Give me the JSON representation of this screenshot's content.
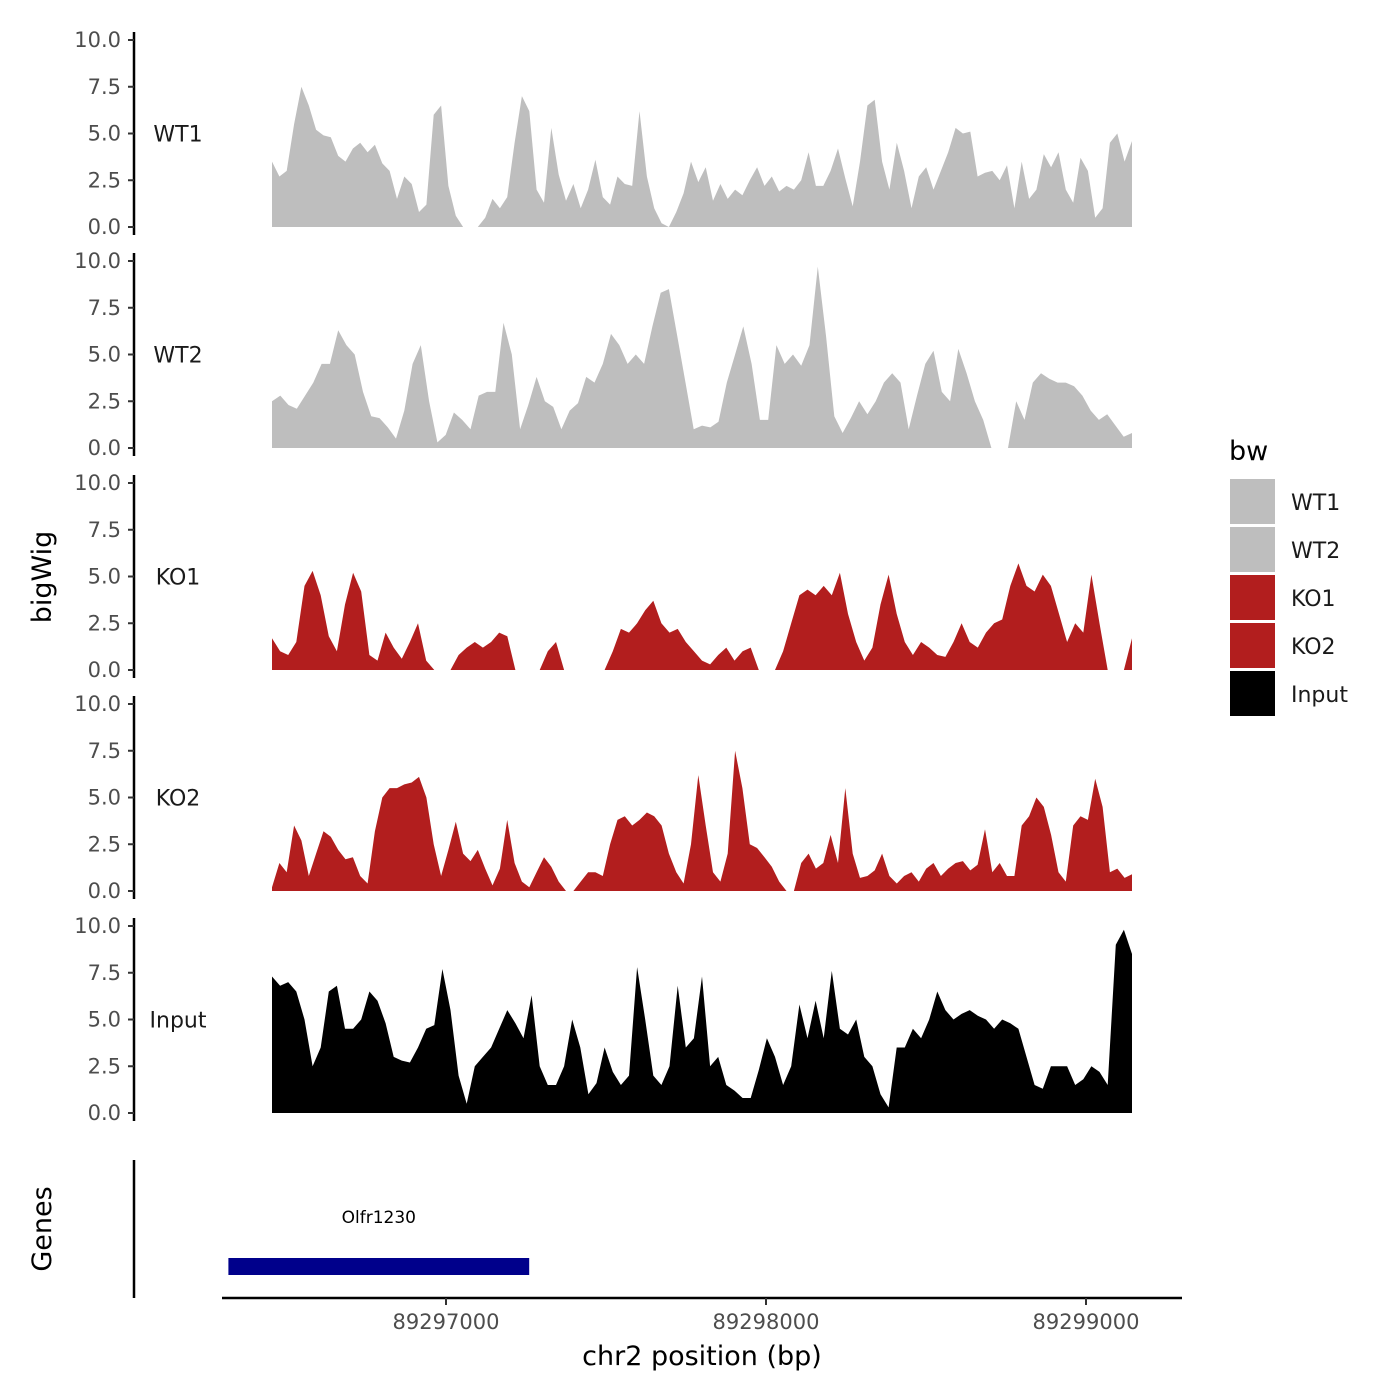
{
  "chart_data": {
    "type": "area",
    "y_axis_title": "bigWig",
    "x_axis_title": "chr2 position (bp)",
    "genes_axis_title": "Genes",
    "y_ticks": [
      "0.0",
      "2.5",
      "5.0",
      "7.5",
      "10.0"
    ],
    "ylim": [
      0,
      10
    ],
    "xlim": [
      89296300,
      89299300
    ],
    "x_tick_values": [
      89297000,
      89298000,
      89299000
    ],
    "x_tick_labels": [
      "89297000",
      "89298000",
      "89299000"
    ],
    "series": [
      {
        "name": "WT1",
        "color": "#bebebe",
        "values": [
          3.5,
          2.7,
          3.0,
          5.5,
          7.5,
          6.5,
          5.2,
          4.9,
          4.8,
          3.8,
          3.5,
          4.2,
          4.5,
          4.0,
          4.4,
          3.4,
          3.0,
          1.5,
          2.7,
          2.3,
          0.8,
          1.2,
          6.0,
          6.5,
          2.2,
          0.6,
          0,
          0,
          0,
          0.5,
          1.5,
          1.0,
          1.6,
          4.5,
          7.0,
          6.2,
          2.0,
          1.3,
          5.3,
          2.8,
          1.4,
          2.3,
          1.0,
          2.0,
          3.6,
          1.6,
          1.2,
          2.7,
          2.3,
          2.2,
          6.2,
          2.7,
          1.0,
          0.2,
          0,
          0.8,
          1.8,
          3.5,
          2.4,
          3.2,
          1.4,
          2.3,
          1.5,
          2.0,
          1.7,
          2.5,
          3.2,
          2.2,
          2.7,
          1.9,
          2.2,
          2.0,
          2.5,
          4.0,
          2.2,
          2.2,
          3.0,
          4.2,
          2.6,
          1.1,
          3.5,
          6.5,
          6.8,
          3.5,
          2.0,
          4.5,
          3.0,
          1.0,
          2.7,
          3.2,
          2.0,
          3.0,
          4.0,
          5.3,
          5.0,
          5.1,
          2.7,
          2.9,
          3.0,
          2.5,
          3.3,
          1.0,
          3.5,
          1.5,
          2.0,
          3.9,
          3.2,
          4.0,
          2.0,
          1.3,
          3.7,
          3.0,
          0.5,
          1.0,
          4.5,
          5.0,
          3.5,
          4.6
        ]
      },
      {
        "name": "WT2",
        "color": "#bebebe",
        "values": [
          2.5,
          2.8,
          2.3,
          2.1,
          2.8,
          3.5,
          4.5,
          4.5,
          6.3,
          5.5,
          5.0,
          3.0,
          1.7,
          1.6,
          1.1,
          0.5,
          2.0,
          4.5,
          5.5,
          2.5,
          0.3,
          0.7,
          1.9,
          1.5,
          1.0,
          2.8,
          3.0,
          3.0,
          6.7,
          5.0,
          1.0,
          2.3,
          3.8,
          2.5,
          2.2,
          1.0,
          2.0,
          2.4,
          3.8,
          3.5,
          4.5,
          6.1,
          5.5,
          4.5,
          5.0,
          4.5,
          6.5,
          8.3,
          8.5,
          6.0,
          3.5,
          1.0,
          1.2,
          1.1,
          1.4,
          3.5,
          5.0,
          6.5,
          4.5,
          1.5,
          1.5,
          5.5,
          4.5,
          5.0,
          4.4,
          5.5,
          9.7,
          6.0,
          1.7,
          0.8,
          1.6,
          2.5,
          1.8,
          2.5,
          3.5,
          4.0,
          3.5,
          1.0,
          2.8,
          4.5,
          5.2,
          3.0,
          2.5,
          5.3,
          4.0,
          2.5,
          1.5,
          0,
          0,
          0,
          2.5,
          1.5,
          3.5,
          4.0,
          3.7,
          3.5,
          3.5,
          3.3,
          2.8,
          2.0,
          1.5,
          1.8,
          1.2,
          0.6,
          0.8
        ]
      },
      {
        "name": "KO1",
        "color": "#b21e1e",
        "values": [
          1.7,
          1.0,
          0.8,
          1.5,
          4.5,
          5.3,
          4.0,
          1.8,
          1.0,
          3.5,
          5.2,
          4.2,
          0.8,
          0.5,
          2.0,
          1.2,
          0.6,
          1.5,
          2.5,
          0.5,
          0,
          0,
          0,
          0.8,
          1.2,
          1.5,
          1.2,
          1.5,
          2.0,
          1.8,
          0,
          0,
          0,
          0,
          1.0,
          1.5,
          0,
          0,
          0,
          0,
          0,
          0,
          1.0,
          2.2,
          2.0,
          2.5,
          3.2,
          3.7,
          2.5,
          2.0,
          2.2,
          1.5,
          1.0,
          0.5,
          0.3,
          0.8,
          1.2,
          0.5,
          1.0,
          1.2,
          0,
          0,
          0,
          1.0,
          2.5,
          4.0,
          4.3,
          4.0,
          4.5,
          4.0,
          5.2,
          3.0,
          1.5,
          0.5,
          1.2,
          3.5,
          5.1,
          3.0,
          1.5,
          0.8,
          1.5,
          1.2,
          0.8,
          0.7,
          1.5,
          2.5,
          1.5,
          1.2,
          2.0,
          2.5,
          2.7,
          4.5,
          5.7,
          4.5,
          4.2,
          5.1,
          4.5,
          3.0,
          1.5,
          2.5,
          2.0,
          5.1,
          2.5,
          0,
          0,
          0,
          1.7
        ]
      },
      {
        "name": "KO2",
        "color": "#b21e1e",
        "values": [
          0.2,
          1.5,
          1.0,
          3.5,
          2.7,
          0.8,
          2.0,
          3.2,
          2.9,
          2.2,
          1.7,
          1.8,
          0.8,
          0.4,
          3.2,
          5.0,
          5.5,
          5.5,
          5.7,
          5.8,
          6.1,
          5.0,
          2.5,
          0.8,
          2.2,
          3.7,
          2.0,
          1.6,
          2.2,
          1.2,
          0.3,
          1.2,
          3.8,
          1.5,
          0.5,
          0.2,
          1.0,
          1.8,
          1.3,
          0.5,
          0,
          0,
          0.5,
          1.0,
          1.0,
          0.8,
          2.5,
          3.8,
          4.0,
          3.5,
          3.8,
          4.2,
          4.0,
          3.5,
          2.0,
          1.0,
          0.4,
          2.5,
          6.2,
          3.5,
          1.0,
          0.5,
          2.0,
          7.5,
          5.5,
          2.5,
          2.3,
          1.8,
          1.3,
          0.5,
          0,
          0,
          1.5,
          2.0,
          1.2,
          1.5,
          3.0,
          1.5,
          5.5,
          2.0,
          0.7,
          0.8,
          1.1,
          2.0,
          0.8,
          0.4,
          0.8,
          1.0,
          0.5,
          1.2,
          1.5,
          0.8,
          1.2,
          1.5,
          1.6,
          1.1,
          1.4,
          3.3,
          1.0,
          1.5,
          0.8,
          0.8,
          3.5,
          4.0,
          5.0,
          4.5,
          3.0,
          1.0,
          0.5,
          3.5,
          4.0,
          3.8,
          6.0,
          4.5,
          1.0,
          1.2,
          0.7,
          0.9
        ]
      },
      {
        "name": "Input",
        "color": "#000000",
        "values": [
          7.3,
          6.8,
          7.0,
          6.5,
          5.0,
          2.5,
          3.5,
          6.5,
          6.8,
          4.5,
          4.5,
          5.0,
          6.5,
          6.0,
          4.8,
          3.0,
          2.8,
          2.7,
          3.5,
          4.5,
          4.7,
          7.7,
          5.5,
          2.0,
          0.5,
          2.5,
          3.0,
          3.5,
          4.5,
          5.5,
          4.8,
          4.0,
          6.3,
          2.5,
          1.5,
          1.5,
          2.5,
          5.0,
          3.5,
          1.0,
          1.6,
          3.5,
          2.2,
          1.5,
          2.0,
          7.8,
          5.0,
          2.0,
          1.5,
          2.5,
          6.8,
          3.5,
          4.0,
          7.3,
          2.5,
          3.0,
          1.5,
          1.2,
          0.8,
          0.8,
          2.3,
          4.0,
          3.0,
          1.5,
          2.5,
          5.8,
          4.0,
          6.0,
          4.0,
          7.6,
          4.5,
          4.2,
          5.0,
          3.0,
          2.5,
          1.0,
          0.3,
          3.5,
          3.5,
          4.5,
          4.0,
          5.0,
          6.5,
          5.5,
          5.0,
          5.3,
          5.5,
          5.2,
          5.0,
          4.5,
          5.0,
          4.8,
          4.5,
          3.0,
          1.5,
          1.3,
          2.5,
          2.5,
          2.5,
          1.5,
          1.8,
          2.5,
          2.2,
          1.5,
          9.0,
          9.8,
          8.5
        ]
      }
    ],
    "legend": {
      "title": "bw",
      "position": "right",
      "items": [
        {
          "label": "WT1",
          "color": "#bebebe"
        },
        {
          "label": "WT2",
          "color": "#bebebe"
        },
        {
          "label": "KO1",
          "color": "#b21e1e"
        },
        {
          "label": "KO2",
          "color": "#b21e1e"
        },
        {
          "label": "Input",
          "color": "#000000"
        }
      ]
    },
    "genes": [
      {
        "name": "Olfr1230",
        "start": 89296320,
        "end": 89297260,
        "color": "#00008b"
      }
    ]
  }
}
